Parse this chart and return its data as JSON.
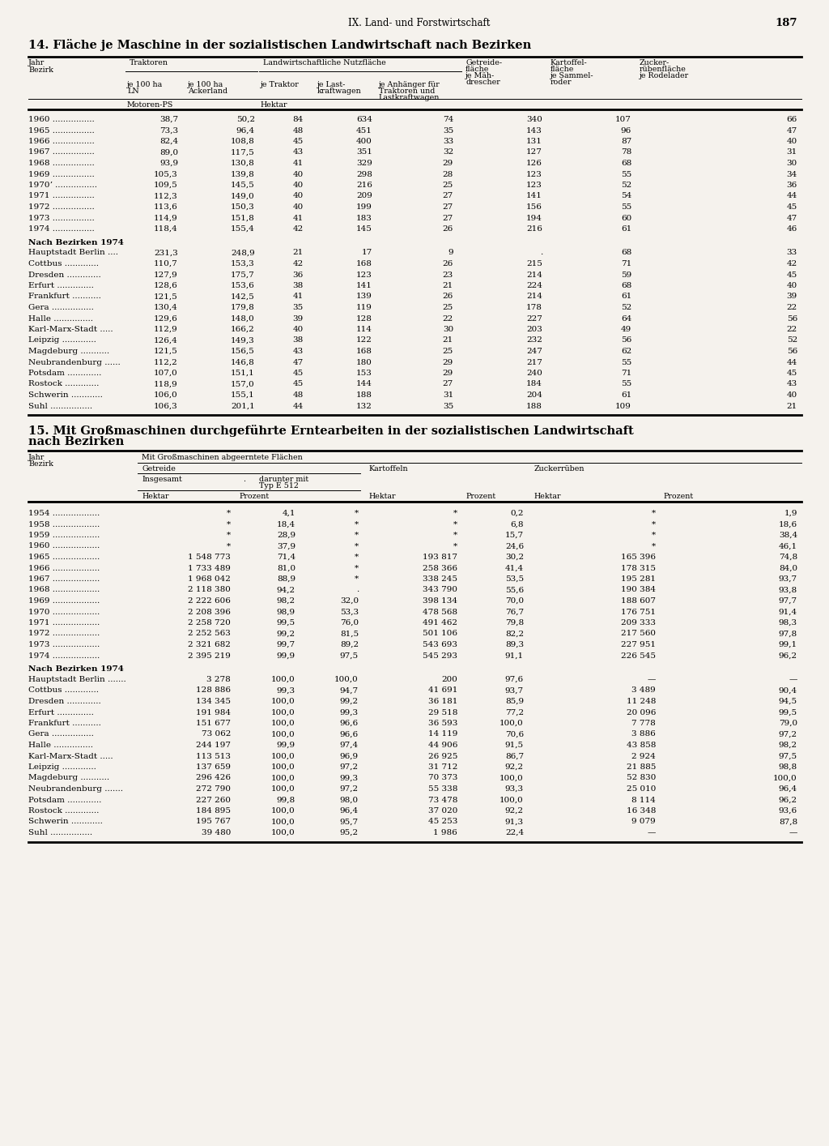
{
  "page_header": "IX. Land- und Forstwirtschaft",
  "page_number": "187",
  "bg_color": "#f5f2ed",
  "table1_title": "14. Fläche je Maschine in der sozialistischen Landwirtschaft nach Bezirken",
  "t1_years": [
    [
      "1960",
      "38,7",
      "50,2",
      "84",
      "634",
      "74",
      "340",
      "107",
      "66"
    ],
    [
      "1965",
      "73,3",
      "96,4",
      "48",
      "451",
      "35",
      "143",
      "96",
      "47"
    ],
    [
      "1966",
      "82,4",
      "108,8",
      "45",
      "400",
      "33",
      "131",
      "87",
      "40"
    ],
    [
      "1967",
      "89,0",
      "117,5",
      "43",
      "351",
      "32",
      "127",
      "78",
      "31"
    ],
    [
      "1968",
      "93,9",
      "130,8",
      "41",
      "329",
      "29",
      "126",
      "68",
      "30"
    ],
    [
      "1969",
      "105,3",
      "139,8",
      "40",
      "298",
      "28",
      "123",
      "55",
      "34"
    ],
    [
      "1970ʼ",
      "109,5",
      "145,5",
      "40",
      "216",
      "25",
      "123",
      "52",
      "36"
    ],
    [
      "1971",
      "112,3",
      "149,0",
      "40",
      "209",
      "27",
      "141",
      "54",
      "44"
    ],
    [
      "1972",
      "113,6",
      "150,3",
      "40",
      "199",
      "27",
      "156",
      "55",
      "45"
    ],
    [
      "1973",
      "114,9",
      "151,8",
      "41",
      "183",
      "27",
      "194",
      "60",
      "47"
    ],
    [
      "1974",
      "118,4",
      "155,4",
      "42",
      "145",
      "26",
      "216",
      "61",
      "46"
    ]
  ],
  "t1_bez": [
    [
      "Hauptstadt Berlin ....",
      "231,3",
      "248,9",
      "21",
      "17",
      "9",
      ".",
      "68",
      "33"
    ],
    [
      "Cottbus .............",
      "110,7",
      "153,3",
      "42",
      "168",
      "26",
      "215",
      "71",
      "42"
    ],
    [
      "Dresden .............",
      "127,9",
      "175,7",
      "36",
      "123",
      "23",
      "214",
      "59",
      "45"
    ],
    [
      "Erfurt ..............",
      "128,6",
      "153,6",
      "38",
      "141",
      "21",
      "224",
      "68",
      "40"
    ],
    [
      "Frankfurt ...........",
      "121,5",
      "142,5",
      "41",
      "139",
      "26",
      "214",
      "61",
      "39"
    ],
    [
      "Gera ................",
      "130,4",
      "179,8",
      "35",
      "119",
      "25",
      "178",
      "52",
      "22"
    ],
    [
      "Halle ...............",
      "129,6",
      "148,0",
      "39",
      "128",
      "22",
      "227",
      "64",
      "56"
    ],
    [
      "Karl-Marx-Stadt .....",
      "112,9",
      "166,2",
      "40",
      "114",
      "30",
      "203",
      "49",
      "22"
    ],
    [
      "Leipzig .............",
      "126,4",
      "149,3",
      "38",
      "122",
      "21",
      "232",
      "56",
      "52"
    ],
    [
      "Magdeburg ...........",
      "121,5",
      "156,5",
      "43",
      "168",
      "25",
      "247",
      "62",
      "56"
    ],
    [
      "Neubrandenburg ......",
      "112,2",
      "146,8",
      "47",
      "180",
      "29",
      "217",
      "55",
      "44"
    ],
    [
      "Potsdam .............",
      "107,0",
      "151,1",
      "45",
      "153",
      "29",
      "240",
      "71",
      "45"
    ],
    [
      "Rostock .............",
      "118,9",
      "157,0",
      "45",
      "144",
      "27",
      "184",
      "55",
      "43"
    ],
    [
      "Schwerin ............",
      "106,0",
      "155,1",
      "48",
      "188",
      "31",
      "204",
      "61",
      "40"
    ],
    [
      "Suhl ................",
      "106,3",
      "201,1",
      "44",
      "132",
      "35",
      "188",
      "109",
      "21"
    ]
  ],
  "table2_title1": "15. Mit Großmaschinen durchgeführte Erntearbeiten in der sozialistischen Landwirtschaft",
  "table2_title2": "nach Bezirken",
  "t2_years_early": [
    [
      "1954",
      "*",
      "4,1",
      "*",
      "*",
      "0,2",
      "*",
      "1,9"
    ],
    [
      "1958",
      "*",
      "18,4",
      "*",
      "*",
      "6,8",
      "*",
      "18,6"
    ],
    [
      "1959",
      "*",
      "28,9",
      "*",
      "*",
      "15,7",
      "*",
      "38,4"
    ],
    [
      "1960",
      "*",
      "37,9",
      "*",
      "*",
      "24,6",
      "*",
      "46,1"
    ]
  ],
  "t2_years_later": [
    [
      "1965",
      "1 548 773",
      "71,4",
      "*",
      "193 817",
      "30,2",
      "165 396",
      "74,8"
    ],
    [
      "1966",
      "1 733 489",
      "81,0",
      "*",
      "258 366",
      "41,4",
      "178 315",
      "84,0"
    ],
    [
      "1967",
      "1 968 042",
      "88,9",
      "*",
      "338 245",
      "53,5",
      "195 281",
      "93,7"
    ],
    [
      "1968",
      "2 118 380",
      "94,2",
      ".",
      "343 790",
      "55,6",
      "190 384",
      "93,8"
    ],
    [
      "1969",
      "2 222 606",
      "98,2",
      "32,0",
      "398 134",
      "70,0",
      "188 607",
      "97,7"
    ],
    [
      "1970",
      "2 208 396",
      "98,9",
      "53,3",
      "478 568",
      "76,7",
      "176 751",
      "91,4"
    ],
    [
      "1971",
      "2 258 720",
      "99,5",
      "76,0",
      "491 462",
      "79,8",
      "209 333",
      "98,3"
    ],
    [
      "1972",
      "2 252 563",
      "99,2",
      "81,5",
      "501 106",
      "82,2",
      "217 560",
      "97,8"
    ],
    [
      "1973",
      "2 321 682",
      "99,7",
      "89,2",
      "543 693",
      "89,3",
      "227 951",
      "99,1"
    ],
    [
      "1974",
      "2 395 219",
      "99,9",
      "97,5",
      "545 293",
      "91,1",
      "226 545",
      "96,2"
    ]
  ],
  "t2_bez": [
    [
      "Hauptstadt Berlin .......",
      "3 278",
      "100,0",
      "100,0",
      "200",
      "97,6",
      "—",
      "—"
    ],
    [
      "Cottbus .............",
      "128 886",
      "99,3",
      "94,7",
      "41 691",
      "93,7",
      "3 489",
      "90,4"
    ],
    [
      "Dresden .............",
      "134 345",
      "100,0",
      "99,2",
      "36 181",
      "85,9",
      "11 248",
      "94,5"
    ],
    [
      "Erfurt ..............",
      "191 984",
      "100,0",
      "99,3",
      "29 518",
      "77,2",
      "20 096",
      "99,5"
    ],
    [
      "Frankfurt ...........",
      "151 677",
      "100,0",
      "96,6",
      "36 593",
      "100,0",
      "7 778",
      "79,0"
    ],
    [
      "Gera ................",
      "73 062",
      "100,0",
      "96,6",
      "14 119",
      "70,6",
      "3 886",
      "97,2"
    ],
    [
      "Halle ...............",
      "244 197",
      "99,9",
      "97,4",
      "44 906",
      "91,5",
      "43 858",
      "98,2"
    ],
    [
      "Karl-Marx-Stadt .....",
      "113 513",
      "100,0",
      "96,9",
      "26 925",
      "86,7",
      "2 924",
      "97,5"
    ],
    [
      "Leipzig .............",
      "137 659",
      "100,0",
      "97,2",
      "31 712",
      "92,2",
      "21 885",
      "98,8"
    ],
    [
      "Magdeburg ...........",
      "296 426",
      "100,0",
      "99,3",
      "70 373",
      "100,0",
      "52 830",
      "100,0"
    ],
    [
      "Neubrandenburg .......",
      "272 790",
      "100,0",
      "97,2",
      "55 338",
      "93,3",
      "25 010",
      "96,4"
    ],
    [
      "Potsdam .............",
      "227 260",
      "99,8",
      "98,0",
      "73 478",
      "100,0",
      "8 114",
      "96,2"
    ],
    [
      "Rostock .............",
      "184 895",
      "100,0",
      "96,4",
      "37 020",
      "92,2",
      "16 348",
      "93,6"
    ],
    [
      "Schwerin ............",
      "195 767",
      "100,0",
      "95,7",
      "45 253",
      "91,3",
      "9 079",
      "87,8"
    ],
    [
      "Suhl ................",
      "39 480",
      "100,0",
      "95,2",
      "1 986",
      "22,4",
      "—",
      "—"
    ]
  ]
}
